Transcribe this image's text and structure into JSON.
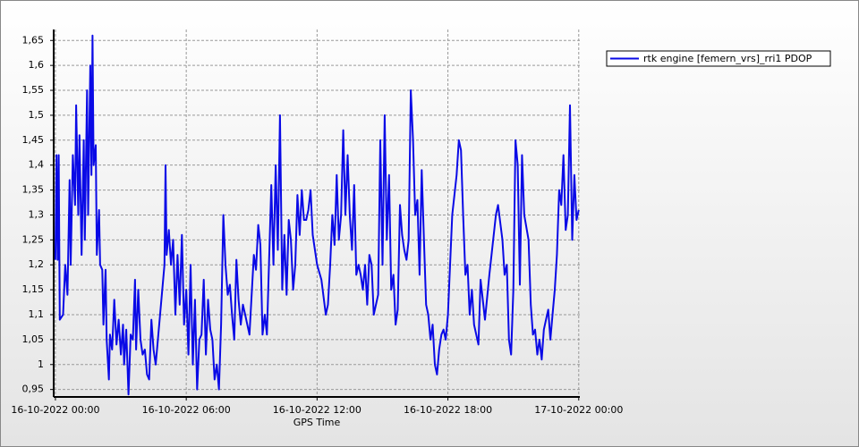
{
  "chart_data": {
    "type": "line",
    "x_label": "GPS Time",
    "series": [
      {
        "name": "rtk engine [femern_vrs]_rri1 PDOP",
        "color": "#0a0ae6",
        "x": [
          0.0,
          0.05,
          0.1,
          0.15,
          0.2,
          0.35,
          0.45,
          0.55,
          0.65,
          0.7,
          0.8,
          0.9,
          0.95,
          1.05,
          1.1,
          1.2,
          1.3,
          1.35,
          1.45,
          1.5,
          1.6,
          1.65,
          1.7,
          1.75,
          1.85,
          1.9,
          2.0,
          2.05,
          2.15,
          2.2,
          2.3,
          2.35,
          2.45,
          2.5,
          2.6,
          2.7,
          2.8,
          2.9,
          3.0,
          3.1,
          3.15,
          3.25,
          3.35,
          3.45,
          3.55,
          3.65,
          3.7,
          3.8,
          3.9,
          4.0,
          4.1,
          4.2,
          4.3,
          4.4,
          4.5,
          4.6,
          5.0,
          5.05,
          5.1,
          5.2,
          5.3,
          5.4,
          5.5,
          5.6,
          5.7,
          5.8,
          5.9,
          6.0,
          6.1,
          6.2,
          6.3,
          6.4,
          6.5,
          6.6,
          6.7,
          6.8,
          6.9,
          7.0,
          7.1,
          7.2,
          7.3,
          7.4,
          7.5,
          7.6,
          7.7,
          7.8,
          7.9,
          8.0,
          8.1,
          8.2,
          8.3,
          8.4,
          8.5,
          8.6,
          8.7,
          8.9,
          9.1,
          9.2,
          9.3,
          9.4,
          9.5,
          9.6,
          9.7,
          9.9,
          10.0,
          10.1,
          10.2,
          10.3,
          10.4,
          10.5,
          10.6,
          10.7,
          10.8,
          10.9,
          11.0,
          11.1,
          11.2,
          11.3,
          11.4,
          11.5,
          11.6,
          11.7,
          11.8,
          12.0,
          12.2,
          12.4,
          12.5,
          12.6,
          12.7,
          12.8,
          12.9,
          13.0,
          13.1,
          13.2,
          13.3,
          13.4,
          13.5,
          13.6,
          13.7,
          13.8,
          13.9,
          14.0,
          14.1,
          14.2,
          14.3,
          14.4,
          14.5,
          14.6,
          14.8,
          14.9,
          15.0,
          15.1,
          15.2,
          15.3,
          15.4,
          15.5,
          15.6,
          15.7,
          15.8,
          15.9,
          16.0,
          16.1,
          16.2,
          16.3,
          16.4,
          16.5,
          16.6,
          16.7,
          16.8,
          16.9,
          17.0,
          17.1,
          17.2,
          17.3,
          17.4,
          17.5,
          17.6,
          17.7,
          17.8,
          17.9,
          18.0,
          18.2,
          18.4,
          18.5,
          18.6,
          18.7,
          18.8,
          18.9,
          19.0,
          19.1,
          19.2,
          19.4,
          19.5,
          19.7,
          19.9,
          20.2,
          20.3,
          20.5,
          20.6,
          20.7,
          20.8,
          20.9,
          21.0,
          21.1,
          21.2,
          21.3,
          21.4,
          21.5,
          21.7,
          21.8,
          21.9,
          22.0,
          22.1,
          22.2,
          22.3,
          22.4,
          22.5,
          22.6,
          22.7,
          22.8,
          22.9,
          23.0,
          23.1,
          23.2,
          23.3,
          23.4,
          23.5,
          23.6,
          23.7,
          23.8,
          23.9,
          24.0
        ],
        "values": [
          1.21,
          1.42,
          1.21,
          1.42,
          1.09,
          1.1,
          1.2,
          1.14,
          1.37,
          1.2,
          1.42,
          1.32,
          1.52,
          1.3,
          1.46,
          1.22,
          1.45,
          1.25,
          1.55,
          1.3,
          1.6,
          1.38,
          1.66,
          1.4,
          1.44,
          1.22,
          1.31,
          1.2,
          1.19,
          1.08,
          1.19,
          1.05,
          0.97,
          1.06,
          1.03,
          1.13,
          1.04,
          1.09,
          1.02,
          1.08,
          1.0,
          1.07,
          0.94,
          1.06,
          1.05,
          1.17,
          1.03,
          1.15,
          1.05,
          1.02,
          1.03,
          0.98,
          0.97,
          1.09,
          1.03,
          1.0,
          1.2,
          1.4,
          1.22,
          1.27,
          1.2,
          1.25,
          1.1,
          1.22,
          1.12,
          1.26,
          1.08,
          1.15,
          1.02,
          1.2,
          1.0,
          1.13,
          0.95,
          1.05,
          1.06,
          1.17,
          1.02,
          1.13,
          1.07,
          1.05,
          0.97,
          1.0,
          0.95,
          1.08,
          1.3,
          1.2,
          1.14,
          1.16,
          1.1,
          1.05,
          1.21,
          1.13,
          1.08,
          1.12,
          1.1,
          1.06,
          1.22,
          1.19,
          1.28,
          1.24,
          1.06,
          1.1,
          1.06,
          1.36,
          1.2,
          1.4,
          1.23,
          1.5,
          1.15,
          1.26,
          1.14,
          1.29,
          1.25,
          1.15,
          1.2,
          1.34,
          1.26,
          1.35,
          1.29,
          1.29,
          1.31,
          1.35,
          1.26,
          1.2,
          1.17,
          1.1,
          1.12,
          1.2,
          1.3,
          1.24,
          1.38,
          1.25,
          1.3,
          1.47,
          1.3,
          1.42,
          1.3,
          1.23,
          1.36,
          1.18,
          1.2,
          1.18,
          1.15,
          1.2,
          1.12,
          1.22,
          1.2,
          1.1,
          1.14,
          1.45,
          1.2,
          1.5,
          1.25,
          1.38,
          1.15,
          1.18,
          1.08,
          1.11,
          1.32,
          1.26,
          1.23,
          1.21,
          1.25,
          1.55,
          1.45,
          1.3,
          1.33,
          1.18,
          1.39,
          1.25,
          1.12,
          1.1,
          1.05,
          1.08,
          1.0,
          0.98,
          1.03,
          1.06,
          1.07,
          1.05,
          1.1,
          1.3,
          1.38,
          1.45,
          1.43,
          1.3,
          1.18,
          1.2,
          1.1,
          1.15,
          1.08,
          1.04,
          1.17,
          1.09,
          1.18,
          1.3,
          1.32,
          1.25,
          1.18,
          1.2,
          1.05,
          1.02,
          1.15,
          1.45,
          1.4,
          1.16,
          1.42,
          1.3,
          1.25,
          1.12,
          1.06,
          1.07,
          1.02,
          1.05,
          1.01,
          1.07,
          1.09,
          1.11,
          1.05,
          1.1,
          1.15,
          1.22,
          1.35,
          1.32,
          1.42,
          1.27,
          1.3,
          1.52,
          1.25,
          1.38,
          1.29,
          1.31
        ]
      }
    ],
    "xlim": [
      -0.08,
      24.05
    ],
    "xticks": [
      {
        "value": 0,
        "label": "16-10-2022 00:00"
      },
      {
        "value": 6,
        "label": "16-10-2022 06:00"
      },
      {
        "value": 12,
        "label": "16-10-2022 12:00"
      },
      {
        "value": 18,
        "label": "16-10-2022 18:00"
      },
      {
        "value": 24,
        "label": "17-10-2022 00:00"
      }
    ],
    "ylim": [
      0.935,
      1.672
    ],
    "yticks": [
      {
        "value": 0.95,
        "label": "0,95"
      },
      1,
      {
        "value": 1.05,
        "label": "1,05"
      },
      {
        "value": 1.1,
        "label": "1,1"
      },
      {
        "value": 1.15,
        "label": "1,15"
      },
      {
        "value": 1.2,
        "label": "1,2"
      },
      {
        "value": 1.25,
        "label": "1,25"
      },
      {
        "value": 1.3,
        "label": "1,3"
      },
      {
        "value": 1.35,
        "label": "1,35"
      },
      {
        "value": 1.4,
        "label": "1,4"
      },
      {
        "value": 1.45,
        "label": "1,45"
      },
      {
        "value": 1.5,
        "label": "1,5"
      },
      {
        "value": 1.55,
        "label": "1,55"
      },
      {
        "value": 1.6,
        "label": "1,6"
      },
      {
        "value": 1.65,
        "label": "1,65"
      }
    ],
    "grid": true
  }
}
